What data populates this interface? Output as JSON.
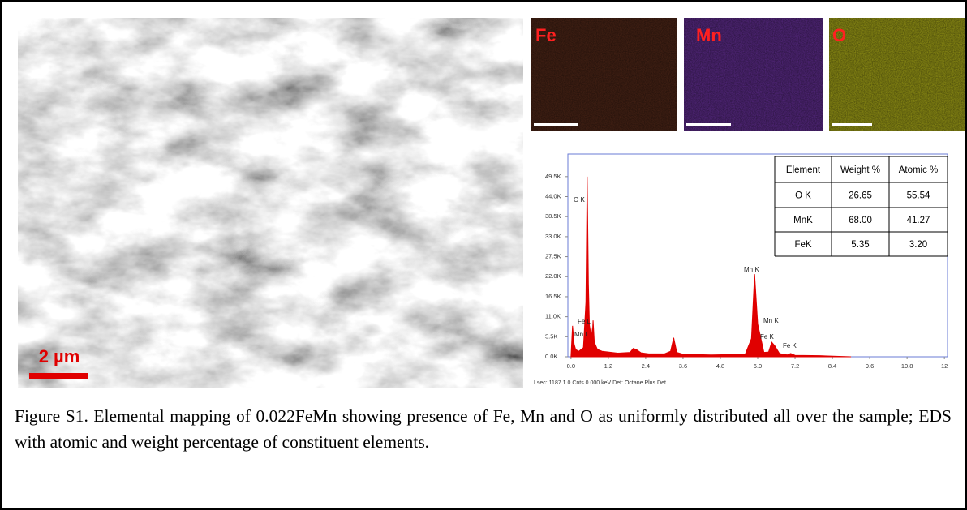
{
  "sem_image": {
    "scale_bar": "2 µm"
  },
  "maps": [
    {
      "label": "Fe"
    },
    {
      "label": "Mn"
    },
    {
      "label": "O"
    }
  ],
  "chart_data": {
    "type": "area",
    "x": [
      0.0,
      0.05,
      0.1,
      0.15,
      0.25,
      0.4,
      0.48,
      0.52,
      0.56,
      0.6,
      0.64,
      0.68,
      0.71,
      0.75,
      0.85,
      1.0,
      1.5,
      1.9,
      2.0,
      2.1,
      2.25,
      2.5,
      3.0,
      3.2,
      3.3,
      3.4,
      3.6,
      4.5,
      5.6,
      5.8,
      5.9,
      6.0,
      6.2,
      6.35,
      6.45,
      6.55,
      6.7,
      6.95,
      7.06,
      7.2,
      8.0,
      9.0
    ],
    "values": [
      0,
      8500,
      3500,
      2000,
      1500,
      2500,
      15000,
      49500,
      20000,
      6000,
      8500,
      5000,
      10000,
      4000,
      2000,
      1500,
      1000,
      1200,
      2300,
      2000,
      1100,
      800,
      800,
      1500,
      5200,
      1200,
      700,
      500,
      700,
      5000,
      22700,
      9000,
      1200,
      1300,
      4000,
      3000,
      900,
      500,
      900,
      400,
      300,
      0
    ],
    "color": "#e00000",
    "xlim": [
      -0.1,
      12.1
    ],
    "ylim": [
      0,
      55700
    ],
    "xticks": [
      {
        "value": 0,
        "label": "0.0"
      },
      {
        "value": 1.2,
        "label": "1.2"
      },
      {
        "value": 2.4,
        "label": "2.4"
      },
      {
        "value": 3.6,
        "label": "3.6"
      },
      {
        "value": 4.8,
        "label": "4.8"
      },
      {
        "value": 6,
        "label": "6.0"
      },
      {
        "value": 7.2,
        "label": "7.2"
      },
      {
        "value": 8.4,
        "label": "8.4"
      },
      {
        "value": 9.6,
        "label": "9.6"
      },
      {
        "value": 10.8,
        "label": "10.8"
      },
      12
    ],
    "yticks": [
      {
        "value": 0,
        "label": "0.0K"
      },
      {
        "value": 5500,
        "label": "5.5K"
      },
      {
        "value": 11000,
        "label": "11.0K"
      },
      {
        "value": 16500,
        "label": "16.5K"
      },
      {
        "value": 22000,
        "label": "22.0K"
      },
      {
        "value": 27500,
        "label": "27.5K"
      },
      {
        "value": 33000,
        "label": "33.0K"
      },
      {
        "value": 38500,
        "label": "38.5K"
      },
      {
        "value": 44000,
        "label": "44.0K"
      },
      {
        "value": 49500,
        "label": "49.5K"
      }
    ],
    "annotations": [
      "O K",
      "Fe L",
      "Mn L",
      "Mn K",
      "Mn K",
      "Fe K",
      "Fe K"
    ],
    "footer": "Lsec: 1187.1 0 Cnts 0.000 keV Det: Octane Plus Det"
  },
  "table": {
    "header": [
      "Element",
      "Weight %",
      "Atomic %"
    ],
    "rows": [
      [
        "O K",
        "26.65",
        "55.54"
      ],
      [
        "MnK",
        "68.00",
        "41.27"
      ],
      [
        "FeK",
        "5.35",
        "3.20"
      ]
    ]
  },
  "caption": "Figure S1. Elemental mapping of 0.022FeMn showing presence of Fe, Mn and O as uniformly distributed all over the sample; EDS with atomic and weight percentage of constituent elements."
}
